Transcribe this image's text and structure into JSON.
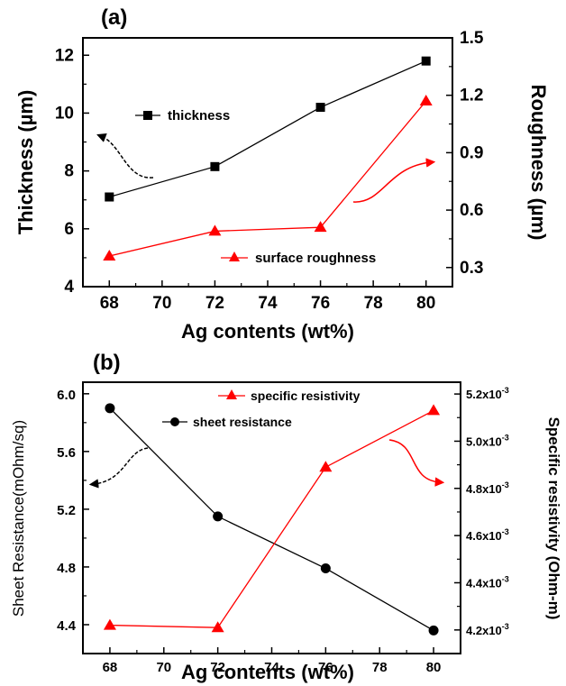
{
  "colors": {
    "black_series": "#000000",
    "red_series": "#ff0000"
  },
  "chart_data": [
    {
      "panel_label": "(a)",
      "type": "line",
      "x": [
        68,
        72,
        76,
        80
      ],
      "xlabel": "Ag contents (wt%)",
      "xlim": [
        67,
        81
      ],
      "xticks": [
        68,
        70,
        72,
        74,
        76,
        78,
        80
      ],
      "ylabel_left": "Thickness (µm)",
      "ylim_left": [
        4,
        12.6
      ],
      "yticks_left": [
        4,
        6,
        8,
        10,
        12
      ],
      "ylabel_right": "Roughness (µm)",
      "ylim_right": [
        0.2,
        1.5
      ],
      "yticks_right": [
        0.3,
        0.6,
        0.9,
        1.2,
        1.5
      ],
      "series": [
        {
          "name": "thickness",
          "axis": "left",
          "marker": "square",
          "color": "#000000",
          "values": [
            7.1,
            8.15,
            10.2,
            11.8
          ]
        },
        {
          "name": "surface roughness",
          "axis": "right",
          "marker": "triangle",
          "color": "#ff0000",
          "values": [
            0.36,
            0.49,
            0.51,
            1.17
          ]
        }
      ],
      "legend_placement": "inline",
      "grid": false
    },
    {
      "panel_label": "(b)",
      "type": "line",
      "x": [
        68,
        72,
        76,
        80
      ],
      "xlabel": "Ag contents (wt%)",
      "xlim": [
        67,
        81
      ],
      "xticks": [
        68,
        70,
        72,
        74,
        76,
        78,
        80
      ],
      "ylabel_left": "Sheet Resistance(mOhm/sq)",
      "ylim_left": [
        4.2,
        6.08
      ],
      "yticks_left": [
        "4.4",
        "4.8",
        "5.2",
        "5.6",
        "6.0"
      ],
      "ylabel_right": "Specific resistivity (Ohm-m)",
      "ylim_right": [
        0.0041,
        0.00525
      ],
      "yticks_right": [
        "4.2x10",
        "4.4x10",
        "4.6x10",
        "4.8x10",
        "5.0x10",
        "5.2x10"
      ],
      "ytick_right_exponent": "-3",
      "series": [
        {
          "name": "sheet resistance",
          "axis": "left",
          "marker": "circle",
          "color": "#000000",
          "values": [
            5.9,
            5.15,
            4.79,
            4.36
          ]
        },
        {
          "name": "specific resistivity",
          "axis": "right",
          "marker": "triangle",
          "color": "#ff0000",
          "values": [
            0.00422,
            0.00421,
            0.00489,
            0.00513
          ]
        }
      ],
      "legend_placement": "top",
      "grid": false
    }
  ]
}
